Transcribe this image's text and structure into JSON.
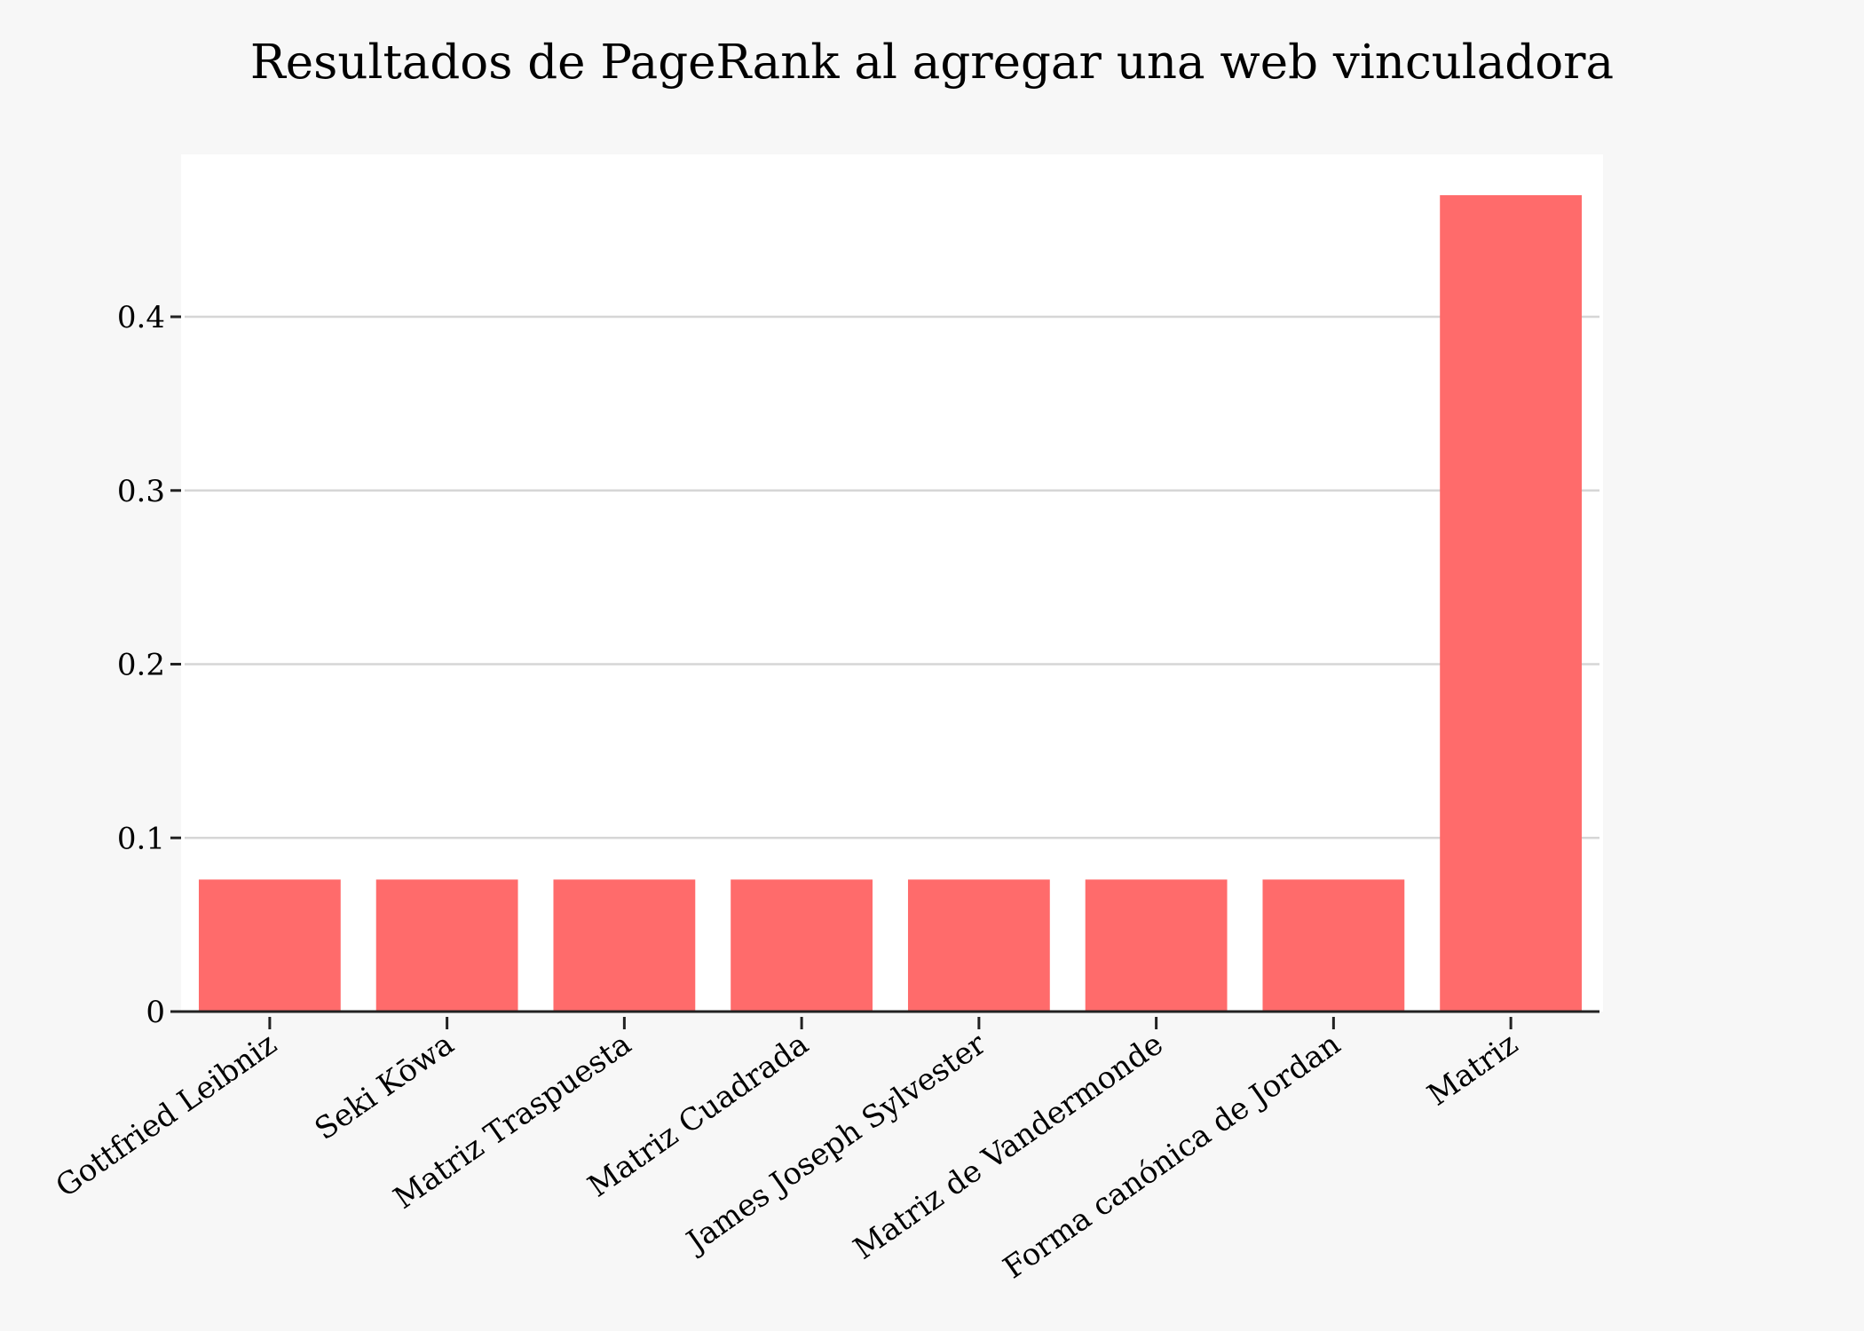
{
  "chart_data": {
    "type": "bar",
    "title": "Resultados de PageRank al agregar una web vinculadora",
    "xlabel": "",
    "ylabel": "",
    "categories": [
      "Gottfried Leibniz",
      "Seki Kōwa",
      "Matriz Traspuesta",
      "Matriz Cuadrada",
      "James Joseph Sylvester",
      "Matriz de Vandermonde",
      "Forma canónica de Jordan",
      "Matriz"
    ],
    "values": [
      0.076,
      0.076,
      0.076,
      0.076,
      0.076,
      0.076,
      0.076,
      0.47
    ],
    "ylim": [
      0,
      0.49
    ],
    "yticks": [
      0,
      0.1,
      0.2,
      0.3,
      0.4
    ],
    "ytick_labels": [
      "0",
      "0.1",
      "0.2",
      "0.3",
      "0.4"
    ],
    "grid": true,
    "legend": "none",
    "colors": {
      "bar": "#ff6b6b",
      "plot_background": "#ffffff",
      "page_background": "#f7f7f7"
    }
  }
}
